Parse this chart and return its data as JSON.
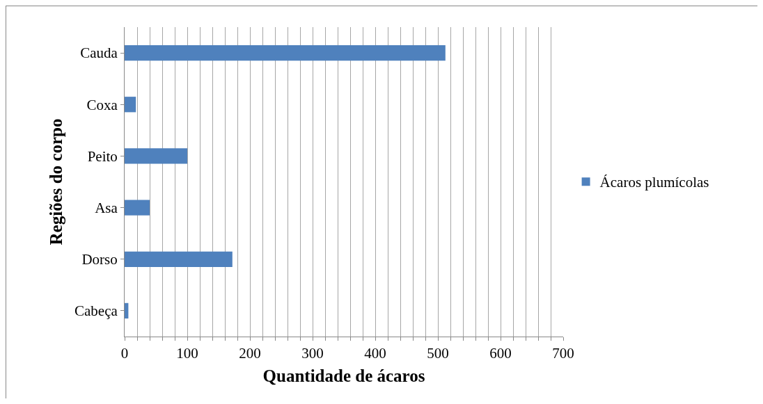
{
  "chart_data": {
    "type": "bar",
    "orientation": "horizontal",
    "xlabel": "Quantidade de ácaros",
    "ylabel": "Regiões do corpo",
    "categories": [
      "Cauda",
      "Coxa",
      "Peito",
      "Asa",
      "Dorso",
      "Cabeça"
    ],
    "series": [
      {
        "name": "Ácaros plumícolas",
        "color": "#4f81bd",
        "values": [
          512,
          18,
          100,
          40,
          172,
          6
        ]
      }
    ],
    "xlim": [
      0,
      700
    ],
    "xticks": [
      0,
      {
        "value": 20,
        "label": null
      },
      {
        "value": 40,
        "label": null
      },
      {
        "value": 60,
        "label": null
      },
      {
        "value": 80,
        "label": null
      },
      100,
      {
        "value": 120,
        "label": null
      },
      {
        "value": 140,
        "label": null
      },
      {
        "value": 160,
        "label": null
      },
      {
        "value": 180,
        "label": null
      },
      200,
      {
        "value": 220,
        "label": null
      },
      {
        "value": 240,
        "label": null
      },
      {
        "value": 260,
        "label": null
      },
      {
        "value": 280,
        "label": null
      },
      300,
      {
        "value": 320,
        "label": null
      },
      {
        "value": 340,
        "label": null
      },
      {
        "value": 360,
        "label": null
      },
      {
        "value": 380,
        "label": null
      },
      400,
      {
        "value": 420,
        "label": null
      },
      {
        "value": 440,
        "label": null
      },
      {
        "value": 460,
        "label": null
      },
      {
        "value": 480,
        "label": null
      },
      500,
      {
        "value": 520,
        "label": null
      },
      {
        "value": 540,
        "label": null
      },
      {
        "value": 560,
        "label": null
      },
      {
        "value": 580,
        "label": null
      },
      600,
      {
        "value": 620,
        "label": null
      },
      {
        "value": 640,
        "label": null
      },
      {
        "value": 660,
        "label": null
      },
      {
        "value": 680,
        "label": null
      },
      700
    ],
    "grid": "x",
    "legend": "right"
  }
}
